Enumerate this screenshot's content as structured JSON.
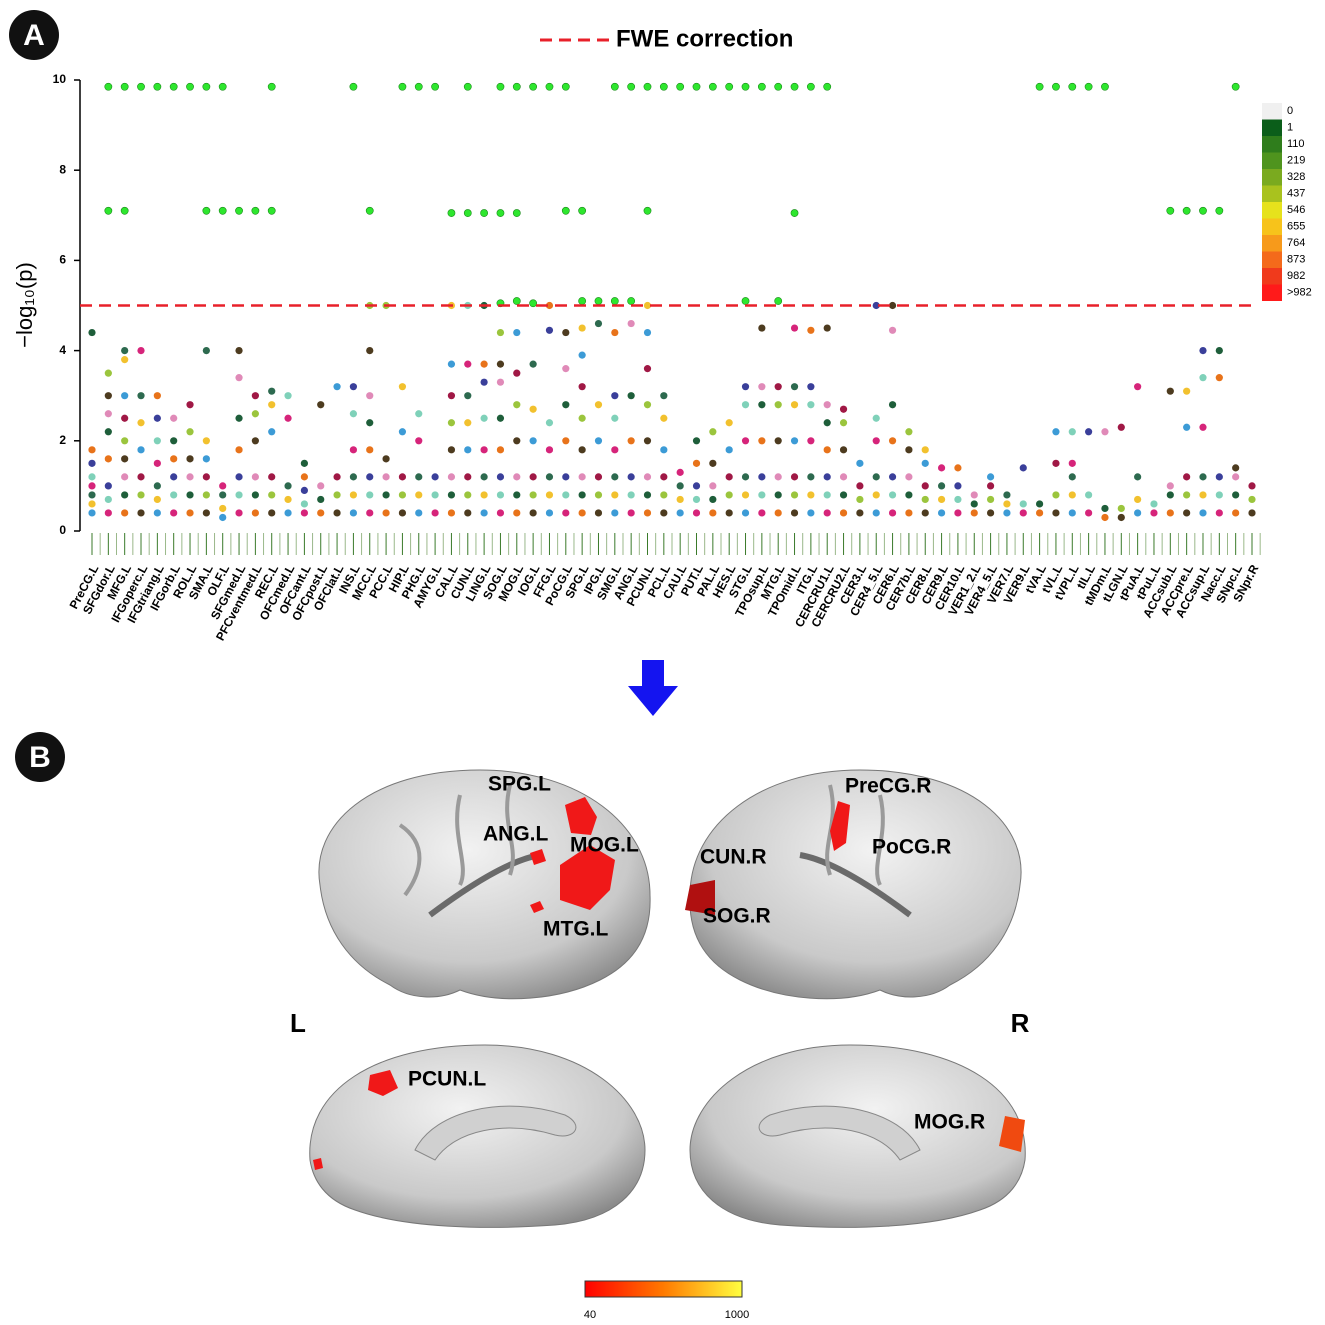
{
  "chart_data": {
    "type": "manhattan",
    "panel_label": "A",
    "legend": "FWE correction",
    "y_label": "−log₁₀(p)",
    "threshold": 5,
    "threshold_color": "#e8202a",
    "significant_color": "#2ee62e",
    "palette": [
      "#3c9bd6",
      "#f2c12e",
      "#2d6a4f",
      "#d6247a",
      "#7fd1b9",
      "#3a3f9a",
      "#e8731a",
      "#1e5e3a",
      "#e08ab8",
      "#4d3b1f",
      "#9bc53d",
      "#a01845"
    ],
    "ylim": [
      0,
      10
    ],
    "yticks": [
      0,
      2,
      4,
      6,
      8,
      10
    ],
    "categories": [
      "PreCG.L",
      "SFGdor.L",
      "MFG.L",
      "IFGoperc.L",
      "IFGtriang.L",
      "IFGorb.L",
      "ROL.L",
      "SMA.L",
      "OLF.L",
      "SFGmed.L",
      "PFCventmed.L",
      "REC.L",
      "OFCmed.L",
      "OFCant.L",
      "OFCpost.L",
      "OFClat.L",
      "INS.L",
      "MCC.L",
      "PCC.L",
      "HIP.L",
      "PHG.L",
      "AMYG.L",
      "CAL.L",
      "CUN.L",
      "LING.L",
      "SOG.L",
      "MOG.L",
      "IOG.L",
      "FFG.L",
      "PoCG.L",
      "SPG.L",
      "IPG.L",
      "SMG.L",
      "ANG.L",
      "PCUN.L",
      "PCL.L",
      "CAU.L",
      "PUT.L",
      "PAL.L",
      "HES.L",
      "STG.L",
      "TPOsup.L",
      "MTG.L",
      "TPOmid.L",
      "ITG.L",
      "CERCRU1.L",
      "CERCRU2.L",
      "CER3.L",
      "CER4_5.L",
      "CER6.L",
      "CER7b.L",
      "CER8.L",
      "CER9.L",
      "CER10.L",
      "VER1_2.L",
      "VER4_5.L",
      "VER7.L",
      "VER9.L",
      "tVA.L",
      "tVL.L",
      "tVPL.L",
      "tIL.L",
      "tMDm.L",
      "tLGN.L",
      "tPuA.L",
      "tPuL.L",
      "ACCsub.L",
      "ACCpre.L",
      "ACCsup.L",
      "Nacc.L",
      "SNpc.L",
      "SNpr.R"
    ],
    "values": [
      [
        0.4,
        0.6,
        0.8,
        1.0,
        1.2,
        1.5,
        1.8,
        4.4
      ],
      [
        0.4,
        0.7,
        1.0,
        1.6,
        2.2,
        2.6,
        3.0,
        3.5,
        7.1,
        9.85
      ],
      [
        0.4,
        0.8,
        1.2,
        1.6,
        2.0,
        2.5,
        3.0,
        3.8,
        4.0,
        7.1,
        9.85
      ],
      [
        0.4,
        0.8,
        1.2,
        1.8,
        2.4,
        3.0,
        4.0,
        9.85
      ],
      [
        0.4,
        0.7,
        1.0,
        1.5,
        2.0,
        2.5,
        3.0,
        9.85
      ],
      [
        0.4,
        0.8,
        1.2,
        1.6,
        2.0,
        2.5,
        9.85
      ],
      [
        0.4,
        0.8,
        1.2,
        1.6,
        2.2,
        2.8,
        9.85
      ],
      [
        0.4,
        0.8,
        1.2,
        1.6,
        2.0,
        4.0,
        7.1,
        9.85
      ],
      [
        0.3,
        0.5,
        0.8,
        1.0,
        7.1,
        9.85
      ],
      [
        0.4,
        0.8,
        1.2,
        1.8,
        2.5,
        3.4,
        4.0,
        7.1
      ],
      [
        0.4,
        0.8,
        1.2,
        2.0,
        2.6,
        3.0,
        7.1
      ],
      [
        0.4,
        0.8,
        1.2,
        2.2,
        2.8,
        3.1,
        7.1,
        9.85
      ],
      [
        0.4,
        0.7,
        1.0,
        2.5,
        3.0
      ],
      [
        0.4,
        0.6,
        0.9,
        1.2,
        1.5
      ],
      [
        0.4,
        0.7,
        1.0,
        2.8
      ],
      [
        0.4,
        0.8,
        1.2,
        3.2
      ],
      [
        0.4,
        0.8,
        1.2,
        1.8,
        2.6,
        3.2,
        9.85
      ],
      [
        0.4,
        0.8,
        1.2,
        1.8,
        2.4,
        3.0,
        4.0,
        5.0,
        7.1
      ],
      [
        0.4,
        0.8,
        1.2,
        1.6,
        5.0
      ],
      [
        0.4,
        0.8,
        1.2,
        2.2,
        3.2,
        9.85
      ],
      [
        0.4,
        0.8,
        1.2,
        2.0,
        2.6,
        9.85
      ],
      [
        0.4,
        0.8,
        1.2,
        9.85
      ],
      [
        0.4,
        0.8,
        1.2,
        1.8,
        2.4,
        3.0,
        3.7,
        5.0,
        7.05
      ],
      [
        0.4,
        0.8,
        1.2,
        1.8,
        2.4,
        3.0,
        3.7,
        5.0,
        7.05,
        9.85
      ],
      [
        0.4,
        0.8,
        1.2,
        1.8,
        2.5,
        3.3,
        3.7,
        5.0,
        7.05
      ],
      [
        0.4,
        0.8,
        1.2,
        1.8,
        2.5,
        3.3,
        3.7,
        4.4,
        5.05,
        7.05,
        9.85
      ],
      [
        0.4,
        0.8,
        1.2,
        2.0,
        2.8,
        3.5,
        4.4,
        5.1,
        7.05,
        9.85
      ],
      [
        0.4,
        0.8,
        1.2,
        2.0,
        2.7,
        3.7,
        5.05,
        9.85
      ],
      [
        0.4,
        0.8,
        1.2,
        1.8,
        2.4,
        4.45,
        5.0,
        9.85
      ],
      [
        0.4,
        0.8,
        1.2,
        2.0,
        2.8,
        3.6,
        4.4,
        7.1,
        9.85
      ],
      [
        0.4,
        0.8,
        1.2,
        1.8,
        2.5,
        3.2,
        3.9,
        4.5,
        5.1,
        7.1
      ],
      [
        0.4,
        0.8,
        1.2,
        2.0,
        2.8,
        4.6,
        5.1
      ],
      [
        0.4,
        0.8,
        1.2,
        1.8,
        2.5,
        3.0,
        4.4,
        5.1,
        9.85
      ],
      [
        0.4,
        0.8,
        1.2,
        2.0,
        3.0,
        4.6,
        5.1,
        9.85
      ],
      [
        0.4,
        0.8,
        1.2,
        2.0,
        2.8,
        3.6,
        4.4,
        5.0,
        7.1,
        9.85
      ],
      [
        0.4,
        0.8,
        1.2,
        1.8,
        2.5,
        3.0,
        9.85
      ],
      [
        0.4,
        0.7,
        1.0,
        1.3,
        9.85
      ],
      [
        0.4,
        0.7,
        1.0,
        1.5,
        2.0,
        9.85
      ],
      [
        0.4,
        0.7,
        1.0,
        1.5,
        2.2,
        9.85
      ],
      [
        0.4,
        0.8,
        1.2,
        1.8,
        2.4,
        9.85
      ],
      [
        0.4,
        0.8,
        1.2,
        2.0,
        2.8,
        3.2,
        5.1,
        9.85
      ],
      [
        0.4,
        0.8,
        1.2,
        2.0,
        2.8,
        3.2,
        4.5,
        9.85
      ],
      [
        0.4,
        0.8,
        1.2,
        2.0,
        2.8,
        3.2,
        5.1,
        9.85
      ],
      [
        0.4,
        0.8,
        1.2,
        2.0,
        2.8,
        3.2,
        4.5,
        7.05,
        9.85
      ],
      [
        0.4,
        0.8,
        1.2,
        2.0,
        2.8,
        3.2,
        4.45,
        9.85
      ],
      [
        0.4,
        0.8,
        1.2,
        1.8,
        2.4,
        2.8,
        4.5,
        9.85
      ],
      [
        0.4,
        0.8,
        1.2,
        1.8,
        2.4,
        2.7
      ],
      [
        0.4,
        0.7,
        1.0,
        1.5
      ],
      [
        0.4,
        0.8,
        1.2,
        2.0,
        2.5,
        5.0
      ],
      [
        0.4,
        0.8,
        1.2,
        2.0,
        2.8,
        4.45,
        5.0
      ],
      [
        0.4,
        0.8,
        1.2,
        1.8,
        2.2
      ],
      [
        0.4,
        0.7,
        1.0,
        1.5,
        1.8
      ],
      [
        0.4,
        0.7,
        1.0,
        1.4
      ],
      [
        0.4,
        0.7,
        1.0,
        1.4
      ],
      [
        0.4,
        0.6,
        0.8
      ],
      [
        0.4,
        0.7,
        1.0,
        1.2
      ],
      [
        0.4,
        0.6,
        0.8
      ],
      [
        0.4,
        0.6,
        1.4
      ],
      [
        0.4,
        0.6,
        9.85
      ],
      [
        0.4,
        0.8,
        1.5,
        2.2,
        9.85
      ],
      [
        0.4,
        0.8,
        1.2,
        1.5,
        2.2,
        9.85
      ],
      [
        0.4,
        0.8,
        2.2,
        9.85
      ],
      [
        0.3,
        0.5,
        2.2,
        9.85
      ],
      [
        0.3,
        0.5,
        2.3
      ],
      [
        0.4,
        0.7,
        1.2,
        3.2
      ],
      [
        0.4,
        0.6
      ],
      [
        0.4,
        0.8,
        1.0,
        3.1,
        7.1
      ],
      [
        0.4,
        0.8,
        1.2,
        2.3,
        3.1,
        7.1
      ],
      [
        0.4,
        0.8,
        1.2,
        2.3,
        3.4,
        4.0,
        7.1
      ],
      [
        0.4,
        0.8,
        1.2,
        3.4,
        4.0,
        7.1
      ],
      [
        0.4,
        0.8,
        1.2,
        1.4,
        9.85
      ],
      [
        0.4,
        0.7,
        1.0
      ]
    ],
    "colorbar": {
      "labels": [
        0,
        1,
        110,
        219,
        328,
        437,
        546,
        655,
        764,
        873,
        982,
        ">982"
      ],
      "colors": [
        "#f0f0f0",
        "#0b5e1a",
        "#2f7d1c",
        "#4f941e",
        "#7aaa1f",
        "#a9c21e",
        "#e6e21c",
        "#f7c31b",
        "#f79a1b",
        "#f46a1b",
        "#f03a1c",
        "#ff1a1a"
      ]
    }
  },
  "brain": {
    "panel_label": "B",
    "regions": [
      "SPG.L",
      "ANG.L",
      "MOG.L",
      "MTG.L",
      "PreCG.R",
      "PoCG.R",
      "CUN.R",
      "SOG.R",
      "PCUN.L",
      "MOG.R"
    ],
    "hemispheres": [
      "L",
      "R"
    ],
    "colorbar": {
      "min": 40,
      "max": 1000
    }
  }
}
